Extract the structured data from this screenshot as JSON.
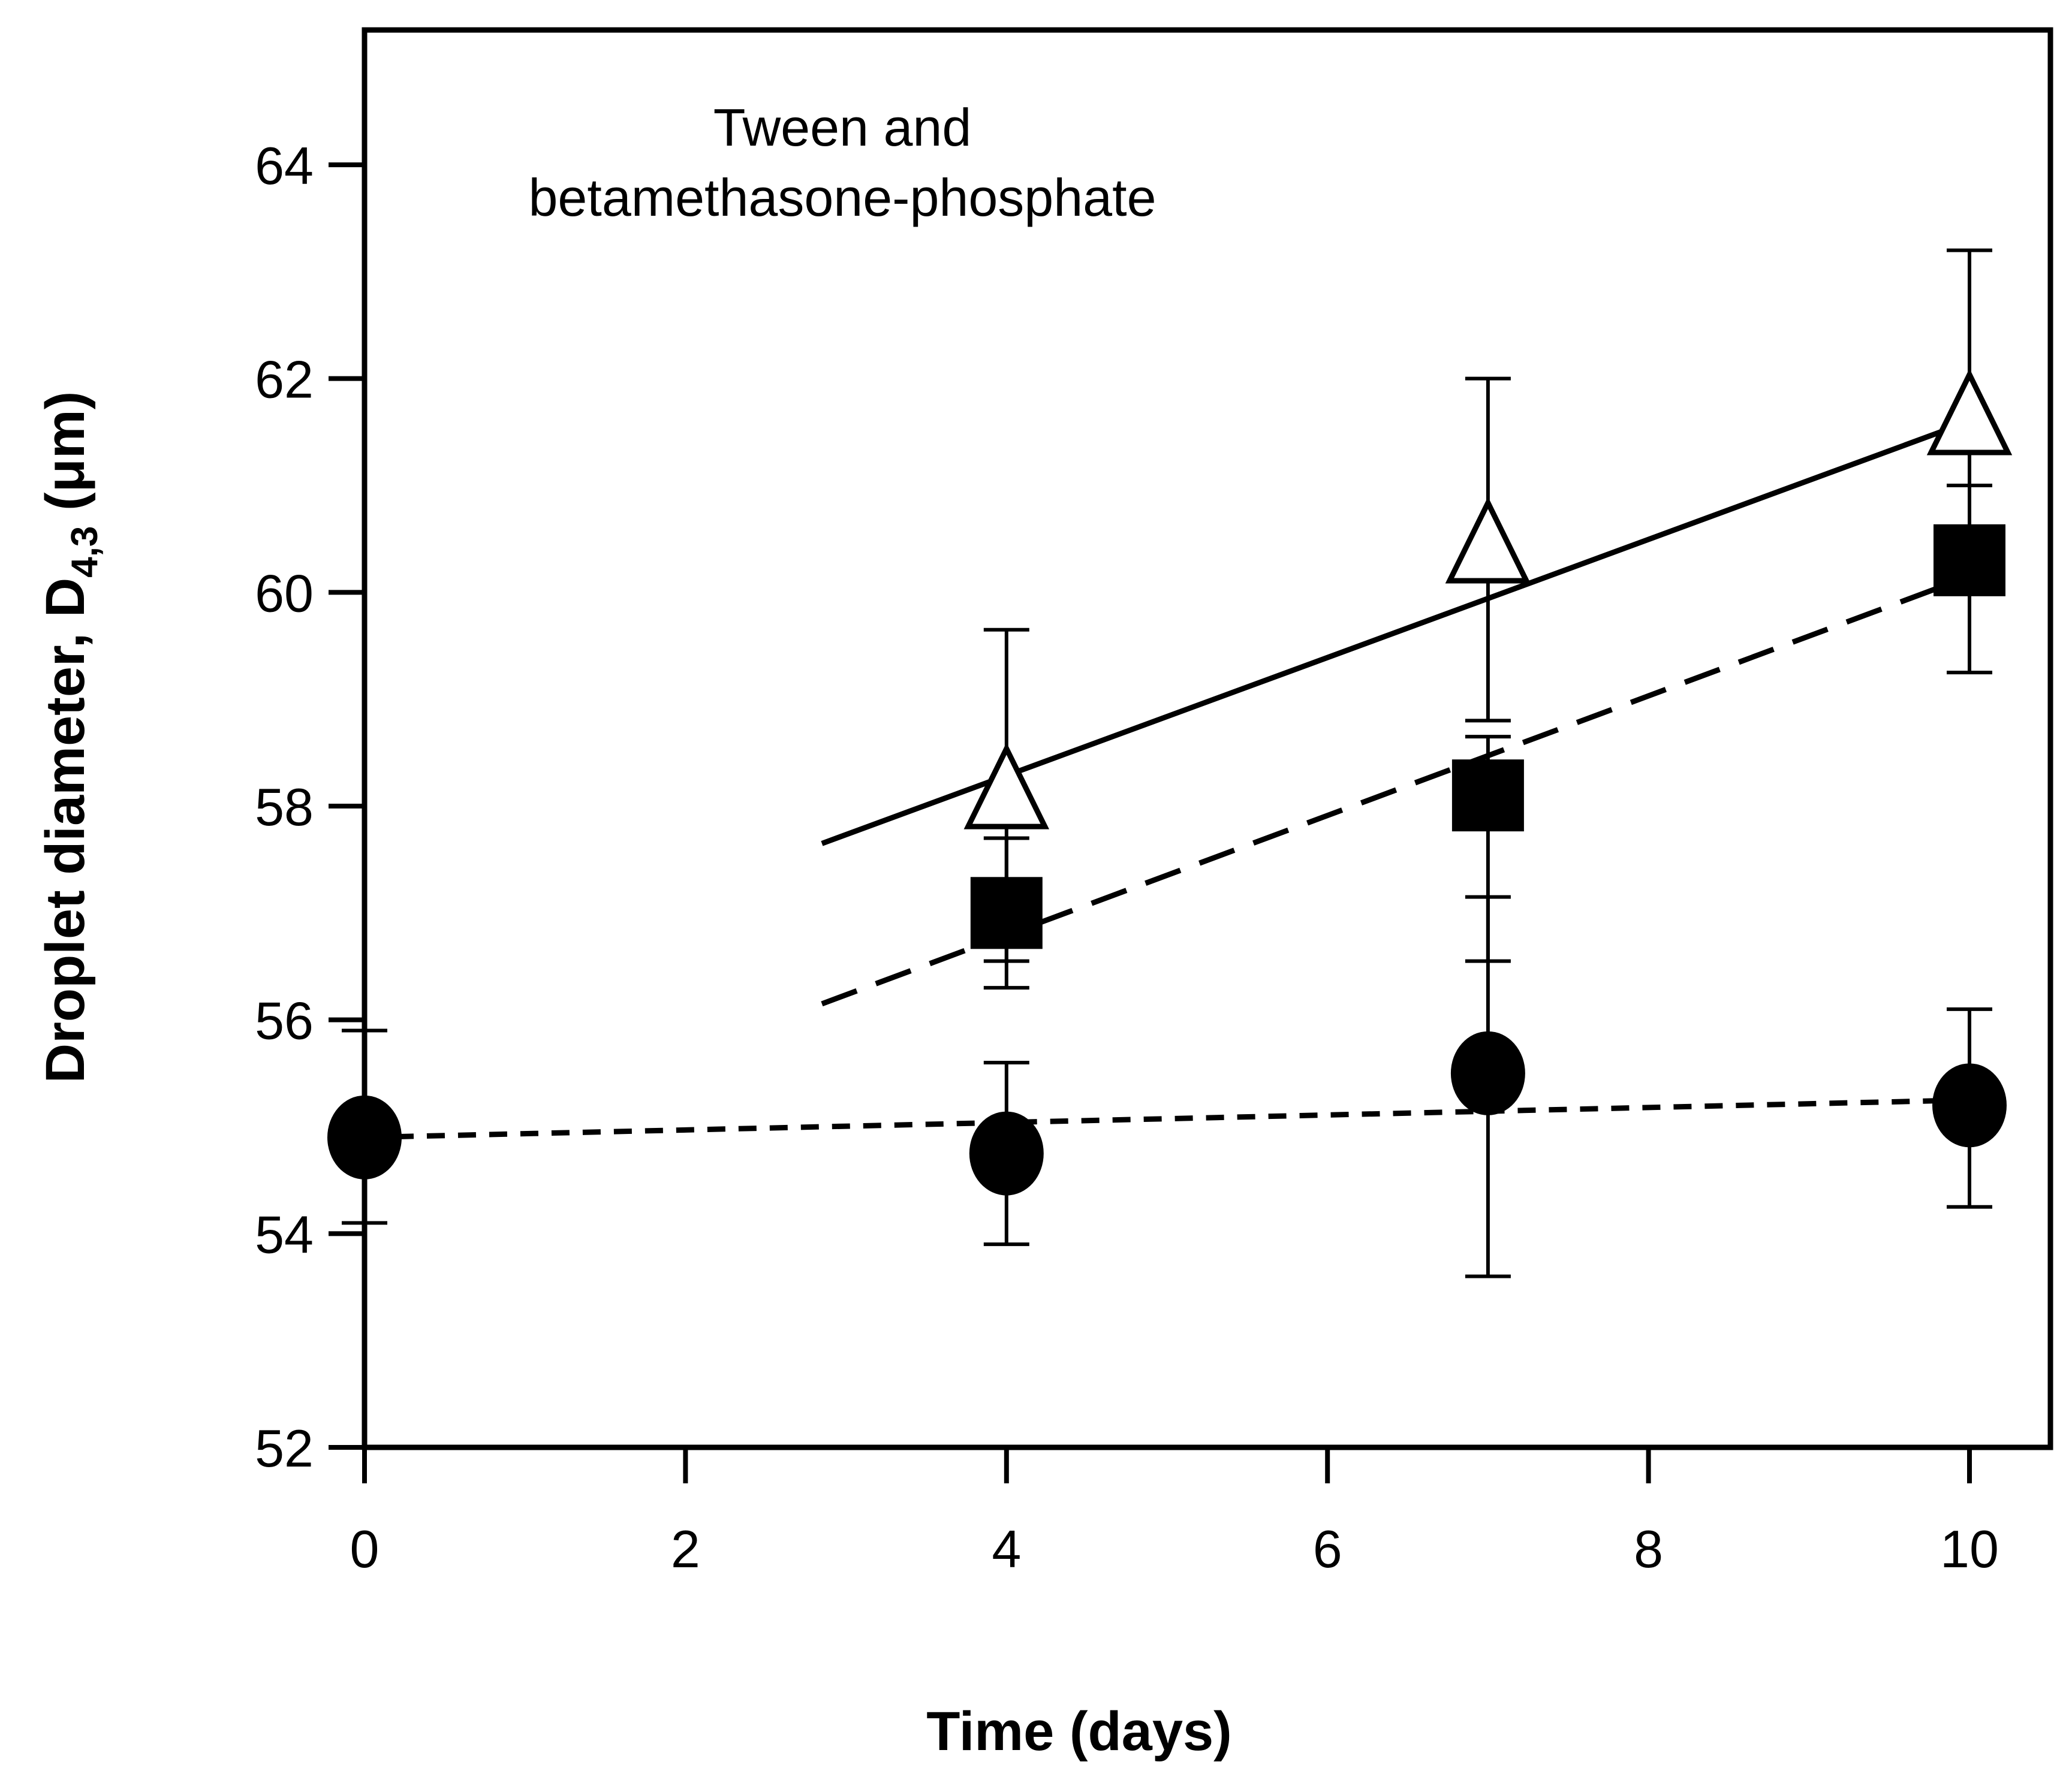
{
  "chart_data": {
    "type": "scatter",
    "title": "",
    "annotation_lines": [
      "Tween and",
      "betamethasone-phosphate"
    ],
    "xlabel": "Time (days)",
    "ylabel_main": "Droplet diameter, D",
    "ylabel_sub": "4,3",
    "ylabel_unit": " (μm)",
    "xlim": [
      0,
      10.5
    ],
    "ylim": [
      52,
      65.3
    ],
    "x_ticks": [
      0,
      2,
      4,
      6,
      8,
      10
    ],
    "y_ticks": [
      52,
      54,
      56,
      58,
      60,
      62,
      64
    ],
    "grid": false,
    "legend": "none",
    "series": [
      {
        "marker": "open-triangle",
        "x": [
          4,
          7,
          10
        ],
        "y": [
          58.1,
          60.4,
          61.6
        ],
        "error_up": [
          1.55,
          1.6,
          1.6
        ],
        "error_down": [
          1.55,
          1.6,
          1.6
        ],
        "fit": {
          "style": "solid",
          "x": [
            2.85,
            10
          ],
          "y": [
            57.65,
            61.6
          ]
        }
      },
      {
        "marker": "filled-square",
        "x": [
          4,
          7,
          10
        ],
        "y": [
          57.0,
          58.1,
          60.3
        ],
        "error_up": [
          0.7,
          0.55,
          0.7
        ],
        "error_down": [
          0.7,
          1.55,
          1.05
        ],
        "fit": {
          "style": "dashed",
          "x": [
            2.85,
            10
          ],
          "y": [
            56.15,
            60.15
          ]
        }
      },
      {
        "marker": "filled-circle",
        "x": [
          0,
          4,
          7,
          10
        ],
        "y": [
          54.9,
          54.75,
          55.5,
          55.2
        ],
        "error_up": [
          1.0,
          0.85,
          1.65,
          0.9
        ],
        "error_down": [
          0.8,
          0.85,
          1.9,
          0.95
        ],
        "fit": {
          "style": "short-dashed",
          "x": [
            0,
            10
          ],
          "y": [
            54.9,
            55.25
          ]
        }
      }
    ]
  }
}
